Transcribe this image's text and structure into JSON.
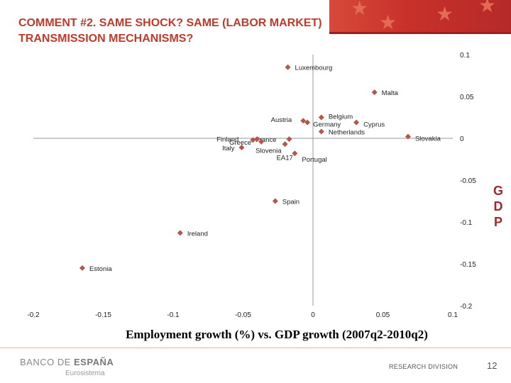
{
  "slide": {
    "title": "COMMENT #2. SAME SHOCK? SAME (LABOR MARKET) TRANSMISSION MECHANISMS?",
    "gdp_letters": [
      "G",
      "D",
      "P"
    ],
    "caption": "Employment growth (%) vs. GDP growth (2007q2-2010q2)",
    "footer": {
      "logo_part1": "BANCO DE ",
      "logo_part2": "ESPAÑA",
      "logo_sub": "Eurosistema",
      "research": "RESEARCH DIVISION",
      "page_number": "12"
    },
    "colors": {
      "title": "#c0392b",
      "marker": "#b5564a",
      "band": "#c8302a"
    }
  },
  "chart_data": {
    "type": "scatter",
    "title": "",
    "xlabel": "Employment growth (%)",
    "ylabel": "GDP",
    "xlim": [
      -0.2,
      0.1
    ],
    "ylim": [
      -0.2,
      0.1
    ],
    "x_ticks": [
      "-0.2",
      "-0.15",
      "-0.1",
      "-0.05",
      "0",
      "0.05",
      "0.1"
    ],
    "y_ticks": [
      "0.1",
      "0.05",
      "0",
      "-0.05",
      "-0.1",
      "-0.15",
      "-0.2"
    ],
    "grid": false,
    "points": [
      {
        "label": "Luxembourg",
        "x": -0.018,
        "y": 0.085
      },
      {
        "label": "Malta",
        "x": 0.044,
        "y": 0.055
      },
      {
        "label": "Austria",
        "x": -0.007,
        "y": 0.021
      },
      {
        "label": "Belgium",
        "x": 0.006,
        "y": 0.025
      },
      {
        "label": "Germany",
        "x": -0.004,
        "y": 0.019
      },
      {
        "label": "Cyprus",
        "x": 0.031,
        "y": 0.019
      },
      {
        "label": "Netherlands",
        "x": 0.006,
        "y": 0.008
      },
      {
        "label": "Slovakia",
        "x": 0.068,
        "y": 0.002
      },
      {
        "label": "Finland",
        "x": -0.043,
        "y": -0.002
      },
      {
        "label": "France",
        "x": -0.017,
        "y": -0.001
      },
      {
        "label": "Greece",
        "x": -0.04,
        "y": -0.001
      },
      {
        "label": "Italy",
        "x": -0.051,
        "y": -0.011
      },
      {
        "label": "Slovenia",
        "x": -0.037,
        "y": -0.004
      },
      {
        "label": "EA17",
        "x": -0.02,
        "y": -0.007
      },
      {
        "label": "Portugal",
        "x": -0.013,
        "y": -0.018
      },
      {
        "label": "Spain",
        "x": -0.027,
        "y": -0.075
      },
      {
        "label": "Ireland",
        "x": -0.095,
        "y": -0.113
      },
      {
        "label": "Estonia",
        "x": -0.165,
        "y": -0.155
      }
    ]
  }
}
